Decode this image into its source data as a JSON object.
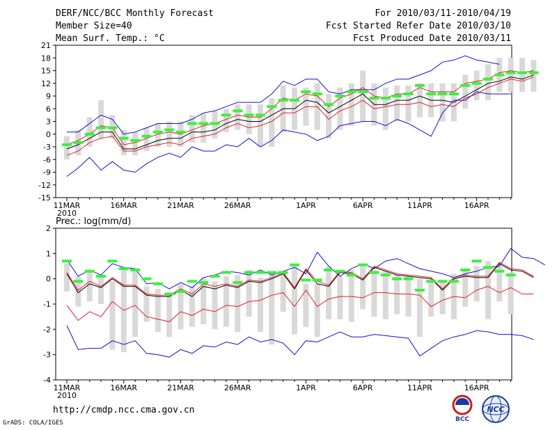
{
  "header": {
    "title": "DERF/NCC/BCC Monthly Forecast",
    "member_size": "Member Size=40",
    "variable": "Mean Surf. Temp.: °C",
    "period": "For 2010/03/11-2010/04/19",
    "start": "Fcst Started Refer Date 2010/03/10",
    "produced": "Fcst Produced Date 2010/03/11"
  },
  "footer": {
    "url": "http://cmdp.ncc.cma.gov.cn",
    "grads": "GrADS: COLA/IGES",
    "bcc_logo": "BCC",
    "ncc_logo": "NCC"
  },
  "colors": {
    "box": "#d9d9d9",
    "observed": "#3cf03c",
    "mean": "#000000",
    "red": "#e0202a",
    "blue": "#1010d0"
  },
  "chart_data": [
    {
      "type": "line",
      "title": "Mean Surf. Temp.: °C",
      "x_tick_labels": [
        "11MAR",
        "16MAR",
        "21MAR",
        "26MAR",
        "1APR",
        "6APR",
        "11APR",
        "16APR"
      ],
      "x_tick_days": [
        0,
        5,
        10,
        15,
        21,
        26,
        31,
        36
      ],
      "year_label": "2010",
      "ylim": [
        -15,
        21
      ],
      "y_ticks": [
        -15,
        -12,
        -9,
        -6,
        -3,
        0,
        3,
        6,
        9,
        12,
        15,
        18,
        21
      ],
      "series": [
        {
          "name": "upper-blue",
          "values": [
            0.5,
            0.5,
            2.5,
            4.5,
            3.5,
            0,
            0.5,
            1.5,
            2.5,
            2.5,
            2.5,
            3.5,
            5,
            5.5,
            6.5,
            7.5,
            7.5,
            7.5,
            9.5,
            12.5,
            11.5,
            13,
            13,
            10,
            9.5,
            10.5,
            10.5,
            10.5,
            12,
            13,
            13,
            14,
            15,
            17,
            17.5,
            18.5,
            17.5,
            17,
            16.5
          ]
        },
        {
          "name": "upper-red",
          "values": [
            -2.5,
            -1.5,
            0,
            2,
            1.5,
            -2.5,
            -2,
            -1,
            0,
            0.5,
            0,
            1,
            2,
            2.5,
            3.5,
            4.5,
            4,
            4,
            6,
            8.5,
            8,
            9.5,
            9,
            6.5,
            8.5,
            9.5,
            11,
            9,
            8.5,
            9.5,
            9.5,
            11,
            10,
            10,
            10,
            12,
            12.5,
            13,
            14.5,
            15,
            14.5,
            15
          ]
        },
        {
          "name": "ensemble-mean",
          "values": [
            -3.5,
            -2.5,
            -1,
            0.5,
            0.5,
            -3.5,
            -3.5,
            -2.5,
            -1.5,
            -1,
            -1,
            0.5,
            0.5,
            1,
            2.5,
            3.5,
            3,
            3,
            4.5,
            6,
            6,
            8,
            7.5,
            5,
            6.5,
            8,
            9.5,
            7,
            7,
            8,
            8,
            9,
            8,
            8,
            7.5,
            9,
            10.5,
            12,
            12.5,
            13.5,
            13,
            14
          ]
        },
        {
          "name": "lower-red",
          "values": [
            -5,
            -4,
            -2,
            -1,
            -0.5,
            -4,
            -4,
            -3,
            -2.5,
            -2,
            -2.5,
            -1,
            -0.5,
            0,
            1.5,
            2.5,
            1.5,
            2,
            3,
            5,
            5,
            6.5,
            6.5,
            3.5,
            5.5,
            6.5,
            8,
            6,
            6.5,
            7,
            7,
            7.5,
            6.5,
            7,
            6.5,
            8.5,
            9.5,
            11,
            12,
            13,
            12.5,
            13.5
          ]
        },
        {
          "name": "lower-blue",
          "values": [
            -10,
            -8,
            -5.5,
            -8.5,
            -6.5,
            -8.5,
            -9,
            -7,
            -5.5,
            -4.5,
            -5.5,
            -3,
            -4,
            -4,
            -2.5,
            -3,
            -1,
            -3,
            -1.5,
            1,
            0.5,
            0,
            -1.5,
            -0.5,
            2,
            2.5,
            3,
            3,
            2,
            3.5,
            2.5,
            1,
            -0.5,
            5,
            8,
            8,
            10,
            9.5,
            9.5,
            9.5
          ]
        },
        {
          "name": "observed",
          "values": [
            -2.5,
            -2,
            0,
            1.5,
            1.5,
            -1,
            -1.5,
            -0.5,
            0.5,
            1,
            0.5,
            2.5,
            2.5,
            2.5,
            4.5,
            5.5,
            4.5,
            4.5,
            6.5,
            8,
            8,
            10,
            9.5,
            7,
            9,
            10,
            10,
            8.5,
            8.5,
            9,
            9.5,
            11.5,
            9.5,
            9.5,
            9.5,
            11.5,
            12,
            13,
            14,
            14.5,
            14.5,
            14.5
          ]
        }
      ],
      "boxes": [
        [
          -6,
          -0.5
        ],
        [
          -5,
          1
        ],
        [
          -3,
          4
        ],
        [
          -1,
          8
        ],
        [
          -1,
          4.5
        ],
        [
          -5,
          1
        ],
        [
          -5,
          0.5
        ],
        [
          -4,
          1.5
        ],
        [
          -3,
          2.5
        ],
        [
          -3,
          3
        ],
        [
          -3,
          3
        ],
        [
          -2,
          4.5
        ],
        [
          -2,
          5
        ],
        [
          -1,
          5.5
        ],
        [
          0.5,
          6
        ],
        [
          1,
          7
        ],
        [
          0,
          7
        ],
        [
          -3,
          7
        ],
        [
          -3,
          8.5
        ],
        [
          0.5,
          11.5
        ],
        [
          1,
          11
        ],
        [
          2,
          11
        ],
        [
          1,
          12
        ],
        [
          -1,
          9.5
        ],
        [
          1,
          11
        ],
        [
          2,
          12
        ],
        [
          3,
          15
        ],
        [
          2,
          12
        ],
        [
          1,
          11
        ],
        [
          3,
          11.5
        ],
        [
          3,
          11.5
        ],
        [
          4,
          12
        ],
        [
          4,
          12
        ],
        [
          3,
          12
        ],
        [
          3,
          12
        ],
        [
          6,
          14
        ],
        [
          8,
          15
        ],
        [
          8,
          16.5
        ],
        [
          10,
          18
        ],
        [
          10,
          18
        ],
        [
          10,
          18
        ],
        [
          10,
          17.5
        ]
      ]
    },
    {
      "type": "line",
      "title": "Prec.: log(mm/d)",
      "x_tick_labels": [
        "11MAR",
        "16MAR",
        "21MAR",
        "26MAR",
        "1APR",
        "6APR",
        "11APR",
        "16APR"
      ],
      "x_tick_days": [
        0,
        5,
        10,
        15,
        21,
        26,
        31,
        36
      ],
      "year_label": "2010",
      "ylim": [
        -4,
        2
      ],
      "y_ticks": [
        -4,
        -3,
        -2,
        -1,
        0,
        1,
        2
      ],
      "series": [
        {
          "name": "upper-blue",
          "values": [
            0.75,
            0.1,
            0.35,
            0.15,
            0.6,
            0.45,
            0.4,
            -0.2,
            -0.15,
            -0.4,
            -0.15,
            -0.35,
            0.05,
            0.15,
            0.3,
            0.25,
            0.15,
            0.35,
            0.15,
            0.3,
            0.45,
            0.2,
            1.05,
            0.5,
            0.1,
            0.4,
            0.6,
            0.4,
            0.7,
            0.8,
            0.6,
            0.4,
            0.3,
            0.2,
            0.05,
            0.2,
            0.3,
            0.45,
            0.5,
            1.2,
            0.85,
            0.8,
            0.55
          ]
        },
        {
          "name": "ensemble-mean",
          "values": [
            0.2,
            -0.55,
            -0.2,
            -0.35,
            0,
            -0.3,
            -0.3,
            -0.65,
            -0.7,
            -0.7,
            -0.45,
            -0.7,
            -0.3,
            -0.4,
            -0.25,
            -0.35,
            -0.1,
            -0.15,
            0,
            0.2,
            -0.4,
            0.35,
            -0.2,
            -0.3,
            0.25,
            0.2,
            -0.05,
            0.45,
            0.3,
            0.15,
            0.1,
            0.05,
            0,
            -0.45,
            0,
            0.1,
            0.05,
            0.05,
            0.6,
            0.35,
            0.3,
            0.05
          ]
        },
        {
          "name": "upper-red",
          "values": [
            0.25,
            -0.45,
            -0.1,
            -0.3,
            0.05,
            -0.25,
            -0.25,
            -0.6,
            -0.65,
            -0.65,
            -0.4,
            -0.6,
            -0.2,
            -0.3,
            -0.2,
            -0.3,
            -0.05,
            -0.1,
            0.05,
            0.25,
            -0.35,
            0.4,
            -0.1,
            -0.25,
            0.3,
            0.25,
            0,
            0.5,
            0.35,
            0.2,
            0.15,
            0.1,
            0.05,
            -0.4,
            0.05,
            0.15,
            0.1,
            0.1,
            0.65,
            0.4,
            0.35,
            0.1
          ]
        },
        {
          "name": "lower-red",
          "values": [
            -1.05,
            -1.65,
            -1.3,
            -1.5,
            -0.9,
            -1.25,
            -1.05,
            -1.5,
            -1.6,
            -1.7,
            -1.3,
            -1.45,
            -1.2,
            -1.3,
            -1.05,
            -1.1,
            -0.9,
            -0.85,
            -0.65,
            -0.55,
            -1.1,
            -0.45,
            -1.1,
            -0.8,
            -0.7,
            -0.7,
            -0.75,
            -0.55,
            -0.55,
            -0.6,
            -0.6,
            -0.65,
            -1.1,
            -0.85,
            -0.7,
            -0.75,
            -0.45,
            -0.3,
            -0.55,
            -0.35,
            -0.6,
            -0.6
          ]
        },
        {
          "name": "lower-blue",
          "values": [
            -1.85,
            -2.8,
            -2.75,
            -2.75,
            -2.45,
            -2.6,
            -2.45,
            -2.95,
            -3,
            -3.1,
            -2.8,
            -2.95,
            -2.65,
            -2.7,
            -2.5,
            -2.6,
            -2.3,
            -2.5,
            -2.4,
            -2.55,
            -3,
            -2.45,
            -2.5,
            -2.3,
            -2.1,
            -2.3,
            -2.3,
            -2.2,
            -2.25,
            -2.3,
            -2.35,
            -3.05,
            -2.75,
            -2.45,
            -2.3,
            -2.2,
            -2.05,
            -2.1,
            -2.2,
            -2.2,
            -2.25,
            -2.4
          ]
        },
        {
          "name": "observed",
          "values": [
            0.7,
            -0.1,
            0.3,
            0.1,
            0.7,
            0.4,
            0.35,
            0,
            -0.2,
            -0.6,
            -0.5,
            -0.1,
            -0.15,
            0.1,
            0.25,
            -0.15,
            0.25,
            0.25,
            0.25,
            0.25,
            0.55,
            -0.05,
            -0.05,
            0.35,
            0.3,
            0.15,
            0.55,
            0.25,
            0.15,
            0,
            0,
            -0.45,
            -0.1,
            -0.1,
            -0.1,
            0.35,
            0.7,
            0.45,
            0.3,
            0.15
          ]
        }
      ],
      "boxes": [
        [
          -0.5,
          0.6
        ],
        [
          -1.1,
          0.1
        ],
        [
          -0.9,
          0.25
        ],
        [
          -1,
          0.05
        ],
        [
          -2.8,
          -0.1
        ],
        [
          -2.9,
          0.45
        ],
        [
          -2.3,
          0.4
        ],
        [
          -1.7,
          -0.3
        ],
        [
          -2.1,
          -0.4
        ],
        [
          -2.3,
          -0.6
        ],
        [
          -2,
          -0.2
        ],
        [
          -1.9,
          -0.3
        ],
        [
          -1.8,
          0.05
        ],
        [
          -2,
          -0.1
        ],
        [
          -1.9,
          0.1
        ],
        [
          -2.1,
          0.15
        ],
        [
          -1.5,
          0.35
        ],
        [
          -2.1,
          0.05
        ],
        [
          -2.6,
          0.25
        ],
        [
          -1.3,
          0.25
        ],
        [
          -2.2,
          0.5
        ],
        [
          -1.9,
          -0.2
        ],
        [
          -2.3,
          -0.2
        ],
        [
          -1.6,
          0.5
        ],
        [
          -1.6,
          0.1
        ],
        [
          -1.7,
          0.35
        ],
        [
          -1.2,
          0.5
        ],
        [
          -1.5,
          0.35
        ],
        [
          -1.6,
          0.3
        ],
        [
          -1.4,
          0.15
        ],
        [
          -1.5,
          0.1
        ],
        [
          -2.3,
          0
        ],
        [
          -1.5,
          -0.1
        ],
        [
          -1.4,
          -0.1
        ],
        [
          -1.6,
          0.2
        ],
        [
          -1.1,
          0.3
        ],
        [
          -0.9,
          0.5
        ],
        [
          -1.6,
          0.7
        ],
        [
          -0.9,
          0.5
        ],
        [
          -1.4,
          0.25
        ]
      ]
    }
  ]
}
